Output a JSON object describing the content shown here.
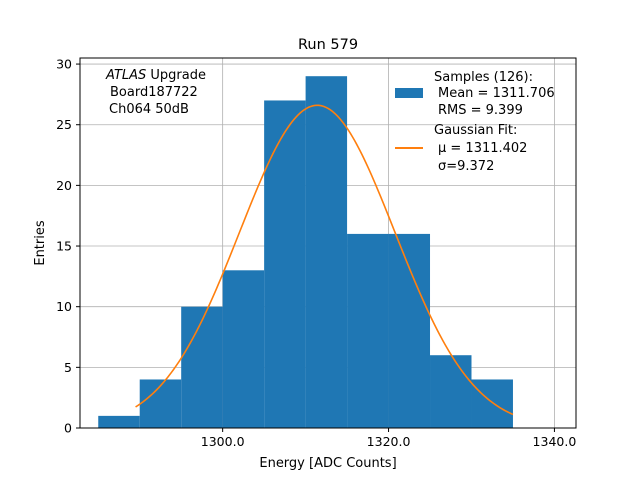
{
  "chart_data": {
    "type": "bar",
    "title": "Run 579",
    "xlabel": "Energy [ADC Counts]",
    "ylabel": "Entries",
    "xlim": [
      1282.8,
      1342.6
    ],
    "ylim": [
      0,
      30.5
    ],
    "xticks": [
      1300.0,
      1320.0,
      1340.0
    ],
    "xtick_labels": [
      "1300.0",
      "1320.0",
      "1340.0"
    ],
    "yticks": [
      0,
      5,
      10,
      15,
      20,
      25,
      30
    ],
    "ytick_labels": [
      "0",
      "5",
      "10",
      "15",
      "20",
      "25",
      "30"
    ],
    "grid": true,
    "legend_position": "top-right",
    "annotation": {
      "italic": "ATLAS",
      "rest": " Upgrade",
      "line2": "Board187722",
      "line3": "Ch064 50dB"
    },
    "histogram": {
      "name": "Samples (126):",
      "color": "#1f77b4",
      "bin_edges": [
        1285,
        1290,
        1295,
        1300,
        1305,
        1310,
        1315,
        1320,
        1325,
        1330,
        1335
      ],
      "counts": [
        1,
        4,
        10,
        13,
        27,
        29,
        16,
        16,
        6,
        4
      ],
      "mean_label": "Mean = 1311.706",
      "rms_label": "RMS = 9.399"
    },
    "gaussian_fit": {
      "name": "Gaussian Fit:",
      "color": "#ff7f0e",
      "mu": 1311.402,
      "sigma": 9.372,
      "amplitude": 26.6,
      "x_range": [
        1289.5,
        1335
      ],
      "mu_label": "μ = 1311.402",
      "sigma_label": "σ=9.372"
    }
  }
}
